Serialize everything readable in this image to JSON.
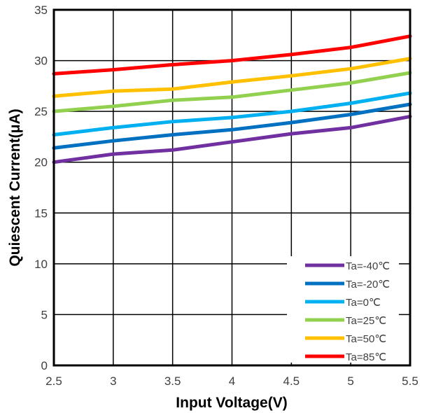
{
  "chart_data": {
    "type": "line",
    "title": "",
    "xlabel": "Input Voltage(V)",
    "ylabel": "Quiescent Current(μA)",
    "xlim": [
      2.5,
      5.5
    ],
    "ylim": [
      0,
      35
    ],
    "xticks": [
      2.5,
      3,
      3.5,
      4,
      4.5,
      5,
      5.5
    ],
    "yticks": [
      0,
      5,
      10,
      15,
      20,
      25,
      30,
      35
    ],
    "x_tick_labels": [
      "2.5",
      "3",
      "3.5",
      "4",
      "4.5",
      "5",
      "5.5"
    ],
    "y_tick_labels": [
      "0",
      "5",
      "10",
      "15",
      "20",
      "25",
      "30",
      "35"
    ],
    "grid": true,
    "legend_position": "bottom-right",
    "x": [
      2.5,
      3,
      3.5,
      4,
      4.5,
      5,
      5.5
    ],
    "series": [
      {
        "name": "Ta=-40℃",
        "color": "#7030A0",
        "values": [
          20.0,
          20.8,
          21.2,
          22.0,
          22.8,
          23.4,
          24.5
        ]
      },
      {
        "name": "Ta=-20℃",
        "color": "#0070C0",
        "values": [
          21.4,
          22.1,
          22.7,
          23.2,
          23.9,
          24.7,
          25.7
        ]
      },
      {
        "name": "Ta=0℃",
        "color": "#00B0F0",
        "values": [
          22.7,
          23.4,
          24.0,
          24.4,
          25.0,
          25.8,
          26.8
        ]
      },
      {
        "name": "Ta=25℃",
        "color": "#92D050",
        "values": [
          25.0,
          25.5,
          26.1,
          26.4,
          27.1,
          27.8,
          28.8
        ]
      },
      {
        "name": "Ta=50℃",
        "color": "#FFC000",
        "values": [
          26.5,
          27.0,
          27.2,
          27.9,
          28.5,
          29.2,
          30.2
        ]
      },
      {
        "name": "Ta=85℃",
        "color": "#FF0000",
        "values": [
          28.7,
          29.1,
          29.6,
          30.0,
          30.6,
          31.3,
          32.4
        ]
      }
    ]
  }
}
